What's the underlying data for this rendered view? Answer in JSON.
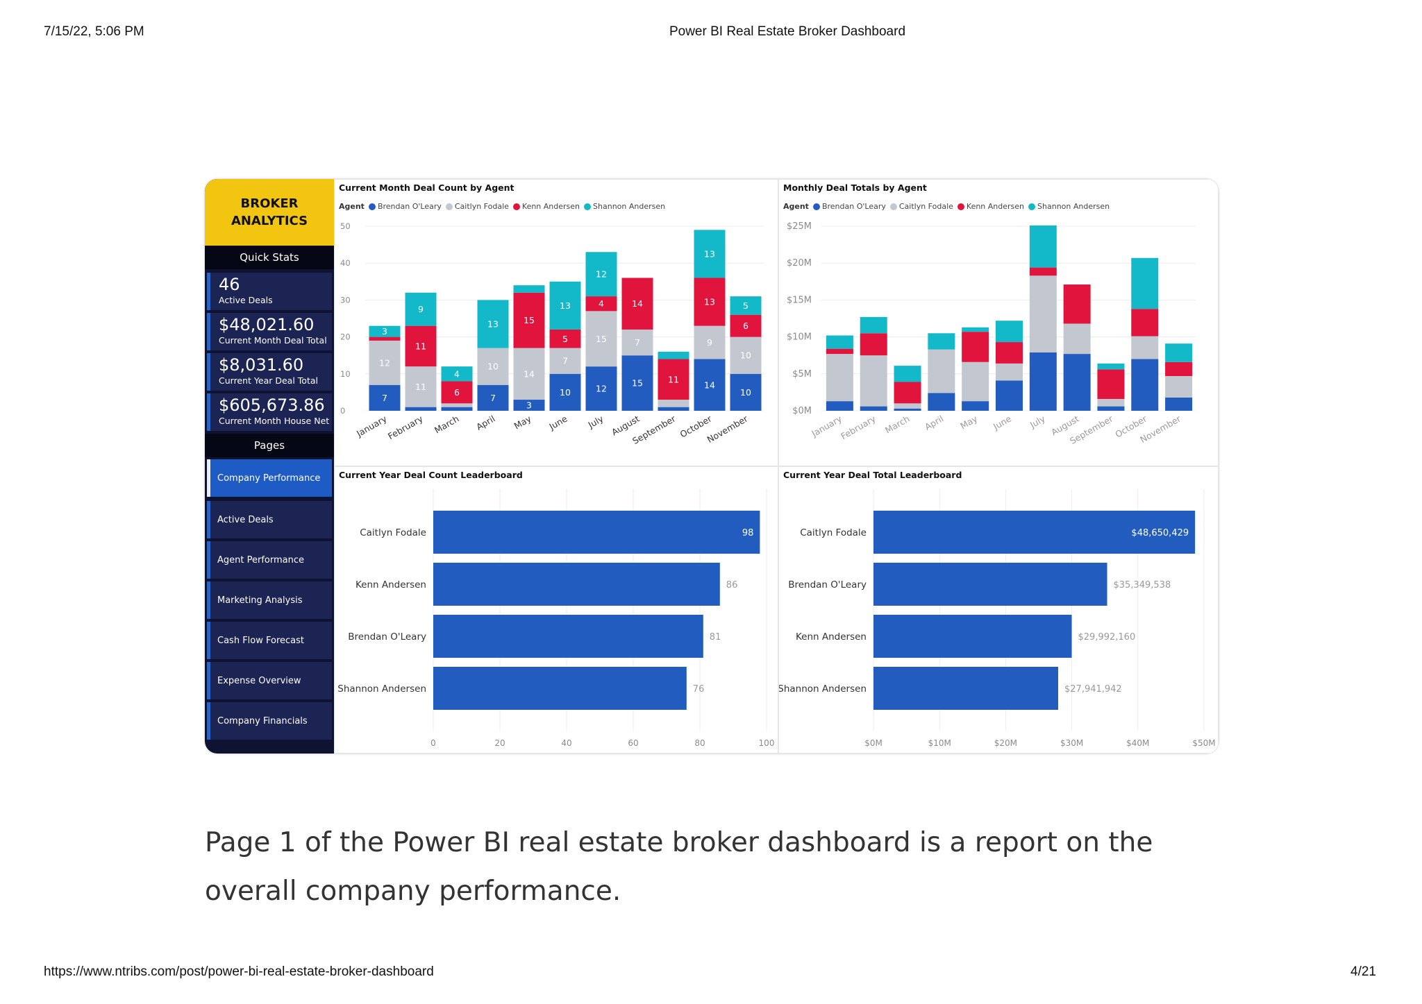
{
  "header": {
    "datetime": "7/15/22, 5:06 PM",
    "title": "Power BI Real Estate Broker Dashboard"
  },
  "footer": {
    "url": "https://www.ntribs.com/post/power-bi-real-estate-broker-dashboard",
    "page": "4/21"
  },
  "sidebar": {
    "brand_line1": "BROKER",
    "brand_line2": "ANALYTICS",
    "quick_stats_title": "Quick Stats",
    "stats": [
      {
        "value": "46",
        "label": "Active Deals"
      },
      {
        "value": "$48,021.60",
        "label": "Current Month Deal Total"
      },
      {
        "value": "$8,031.60",
        "label": "Current Year Deal Total"
      },
      {
        "value": "$605,673.86",
        "label": "Current Month House Net"
      }
    ],
    "pages_title": "Pages",
    "pages": [
      {
        "label": "Company Performance",
        "active": true
      },
      {
        "label": "Active Deals"
      },
      {
        "label": "Agent Performance"
      },
      {
        "label": "Marketing Analysis"
      },
      {
        "label": "Cash Flow Forecast"
      },
      {
        "label": "Expense Overview"
      },
      {
        "label": "Company Financials"
      }
    ]
  },
  "legend": {
    "title": "Agent",
    "agents": [
      {
        "name": "Brendan O'Leary",
        "color": "#225cbf"
      },
      {
        "name": "Caitlyn Fodale",
        "color": "#c3c7cf"
      },
      {
        "name": "Kenn Andersen",
        "color": "#e0143c"
      },
      {
        "name": "Shannon Andersen",
        "color": "#13b9c9"
      }
    ]
  },
  "caption": "Page 1 of the Power BI real estate broker dashboard is a report on the overall company performance.",
  "chart_data": [
    {
      "title": "Current Month Deal Count by Agent",
      "type": "bar",
      "stacked": true,
      "categories": [
        "January",
        "February",
        "March",
        "April",
        "May",
        "June",
        "July",
        "August",
        "September",
        "October",
        "November"
      ],
      "ylim": [
        0,
        50
      ],
      "yticks": [
        0,
        10,
        20,
        30,
        40,
        50
      ],
      "ytick_labels": [
        "0",
        "10",
        "20",
        "30",
        "40",
        "50"
      ],
      "series": [
        {
          "name": "Brendan O'Leary",
          "values": [
            7,
            1,
            1,
            7,
            3,
            10,
            12,
            15,
            1,
            14,
            10
          ],
          "labels": [
            "7",
            "",
            "",
            "7",
            "3",
            "10",
            "12",
            "15",
            "",
            "14",
            "10"
          ]
        },
        {
          "name": "Caitlyn Fodale",
          "values": [
            12,
            11,
            1,
            10,
            14,
            7,
            15,
            7,
            2,
            9,
            10
          ],
          "labels": [
            "12",
            "11",
            "",
            "10",
            "14",
            "7",
            "15",
            "7",
            "",
            "9",
            "10"
          ]
        },
        {
          "name": "Kenn Andersen",
          "values": [
            1,
            11,
            6,
            0,
            15,
            5,
            4,
            14,
            11,
            13,
            6
          ],
          "labels": [
            "",
            "11",
            "6",
            "",
            "15",
            "5",
            "4",
            "14",
            "11",
            "13",
            "6"
          ]
        },
        {
          "name": "Shannon Andersen",
          "values": [
            3,
            9,
            4,
            13,
            2,
            13,
            12,
            0,
            2,
            13,
            5
          ],
          "labels": [
            "3",
            "9",
            "4",
            "13",
            "",
            "13",
            "12",
            "",
            "",
            "13",
            "5"
          ]
        }
      ]
    },
    {
      "title": "Monthly Deal Totals by Agent",
      "type": "bar",
      "stacked": true,
      "categories": [
        "January",
        "February",
        "March",
        "April",
        "May",
        "June",
        "July",
        "August",
        "September",
        "October",
        "November"
      ],
      "ylim": [
        0,
        25
      ],
      "yticks": [
        0,
        5,
        10,
        15,
        20,
        25
      ],
      "ytick_labels": [
        "$0M",
        "$5M",
        "$10M",
        "$15M",
        "$20M",
        "$25M"
      ],
      "series": [
        {
          "name": "Brendan O'Leary",
          "values": [
            1.3,
            0.6,
            0.3,
            2.4,
            1.3,
            4.1,
            7.9,
            7.7,
            0.6,
            7.0,
            1.8
          ]
        },
        {
          "name": "Caitlyn Fodale",
          "values": [
            6.4,
            6.9,
            0.7,
            5.9,
            5.3,
            2.3,
            10.4,
            4.1,
            1.0,
            3.1,
            2.9
          ]
        },
        {
          "name": "Kenn Andersen",
          "values": [
            0.7,
            3.0,
            2.9,
            0,
            4.1,
            2.9,
            1.1,
            5.3,
            4.0,
            3.7,
            1.9
          ]
        },
        {
          "name": "Shannon Andersen",
          "values": [
            1.8,
            2.2,
            2.2,
            2.2,
            0.6,
            2.9,
            5.7,
            0,
            0.8,
            6.9,
            2.5
          ]
        }
      ]
    },
    {
      "title": "Current Year Deal Count Leaderboard",
      "type": "bar",
      "orientation": "horizontal",
      "categories": [
        "Caitlyn Fodale",
        "Kenn Andersen",
        "Brendan O'Leary",
        "Shannon Andersen"
      ],
      "values": [
        98,
        86,
        81,
        76
      ],
      "value_labels": [
        "98",
        "86",
        "81",
        "76"
      ],
      "xlim": [
        0,
        100
      ],
      "xticks": [
        0,
        20,
        40,
        60,
        80,
        100
      ],
      "xtick_labels": [
        "0",
        "20",
        "40",
        "60",
        "80",
        "100"
      ]
    },
    {
      "title": "Current Year Deal Total Leaderboard",
      "type": "bar",
      "orientation": "horizontal",
      "categories": [
        "Caitlyn Fodale",
        "Brendan O'Leary",
        "Kenn Andersen",
        "Shannon Andersen"
      ],
      "values": [
        48650429,
        35349538,
        29992160,
        27941942
      ],
      "value_labels": [
        "$48,650,429",
        "$35,349,538",
        "$29,992,160",
        "$27,941,942"
      ],
      "xlim": [
        0,
        50000000
      ],
      "xticks": [
        0,
        10000000,
        20000000,
        30000000,
        40000000,
        50000000
      ],
      "xtick_labels": [
        "$0M",
        "$10M",
        "$20M",
        "$30M",
        "$40M",
        "$50M"
      ]
    }
  ]
}
